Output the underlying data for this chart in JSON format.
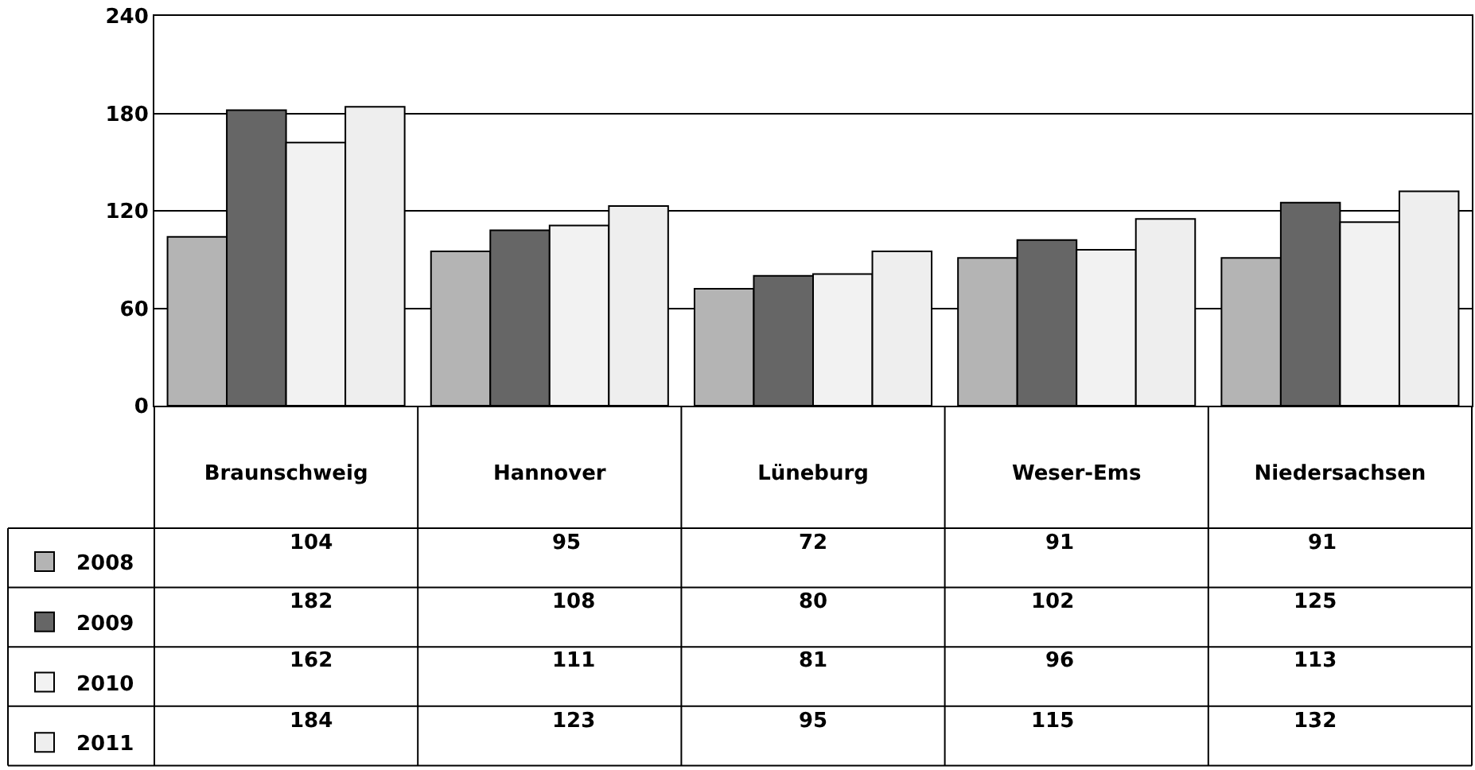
{
  "chart_data": {
    "type": "bar",
    "categories": [
      "Braunschweig",
      "Hannover",
      "Lüneburg",
      "Weser-Ems",
      "Niedersachsen"
    ],
    "series": [
      {
        "name": "2008",
        "color": "#b4b4b4",
        "values": [
          104,
          95,
          72,
          91,
          91
        ]
      },
      {
        "name": "2009",
        "color": "#666666",
        "values": [
          182,
          108,
          80,
          102,
          125
        ]
      },
      {
        "name": "2010",
        "color": "#f2f2f2",
        "values": [
          162,
          111,
          81,
          96,
          113
        ]
      },
      {
        "name": "2011",
        "color": "#eeeeee",
        "values": [
          184,
          123,
          95,
          115,
          132
        ]
      }
    ],
    "ylim": [
      0,
      240
    ],
    "yticks": [
      0,
      60,
      120,
      180,
      240
    ],
    "grid": "y",
    "legend": "bottom left",
    "data_labels": true
  }
}
